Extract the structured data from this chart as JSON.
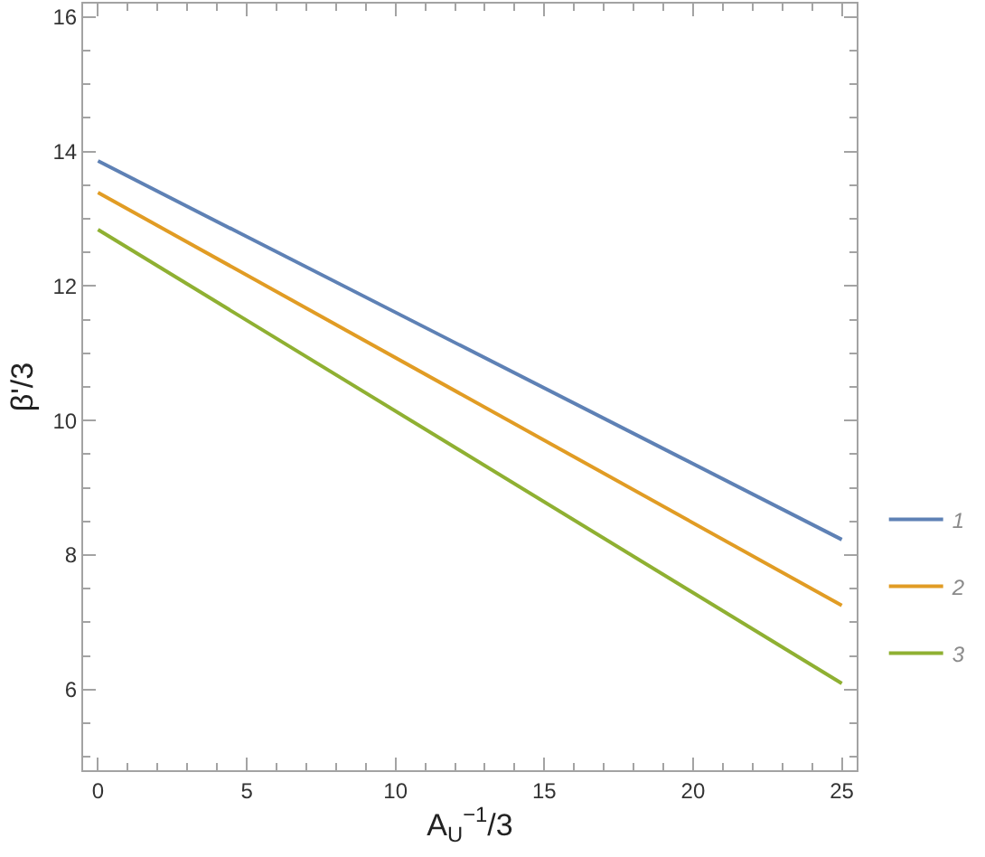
{
  "chart_data": {
    "type": "line",
    "xlabel": "A$_{U}$$^{−1}$/3",
    "ylabel": "β'/3",
    "x": [
      0,
      25
    ],
    "series": [
      {
        "name": "1",
        "color": "#5e81b5",
        "values": [
          13.86,
          8.23
        ]
      },
      {
        "name": "2",
        "color": "#e19c24",
        "values": [
          13.39,
          7.25
        ]
      },
      {
        "name": "3",
        "color": "#8fb032",
        "values": [
          12.84,
          6.09
        ]
      }
    ],
    "xlim": [
      -0.5,
      25.5
    ],
    "ylim": [
      4.8,
      16.2
    ],
    "xticks": [
      0,
      {
        "value": 1,
        "label": null
      },
      {
        "value": 2,
        "label": null
      },
      {
        "value": 3,
        "label": null
      },
      {
        "value": 4,
        "label": null
      },
      5,
      {
        "value": 6,
        "label": null
      },
      {
        "value": 7,
        "label": null
      },
      {
        "value": 8,
        "label": null
      },
      {
        "value": 9,
        "label": null
      },
      10,
      {
        "value": 11,
        "label": null
      },
      {
        "value": 12,
        "label": null
      },
      {
        "value": 13,
        "label": null
      },
      {
        "value": 14,
        "label": null
      },
      15,
      {
        "value": 16,
        "label": null
      },
      {
        "value": 17,
        "label": null
      },
      {
        "value": 18,
        "label": null
      },
      {
        "value": 19,
        "label": null
      },
      20,
      {
        "value": 21,
        "label": null
      },
      {
        "value": 22,
        "label": null
      },
      {
        "value": 23,
        "label": null
      },
      {
        "value": 24,
        "label": null
      },
      25
    ],
    "yticks": [
      {
        "value": 5,
        "label": null
      },
      {
        "value": 5.5,
        "label": null
      },
      6,
      {
        "value": 6.5,
        "label": null
      },
      {
        "value": 7,
        "label": null
      },
      {
        "value": 7.5,
        "label": null
      },
      8,
      {
        "value": 8.5,
        "label": null
      },
      {
        "value": 9,
        "label": null
      },
      {
        "value": 9.5,
        "label": null
      },
      10,
      {
        "value": 10.5,
        "label": null
      },
      {
        "value": 11,
        "label": null
      },
      {
        "value": 11.5,
        "label": null
      },
      12,
      {
        "value": 12.5,
        "label": null
      },
      {
        "value": 13,
        "label": null
      },
      {
        "value": 13.5,
        "label": null
      },
      14,
      {
        "value": 14.5,
        "label": null
      },
      {
        "value": 15,
        "label": null
      },
      {
        "value": 15.5,
        "label": null
      },
      16
    ],
    "legend": "right"
  }
}
